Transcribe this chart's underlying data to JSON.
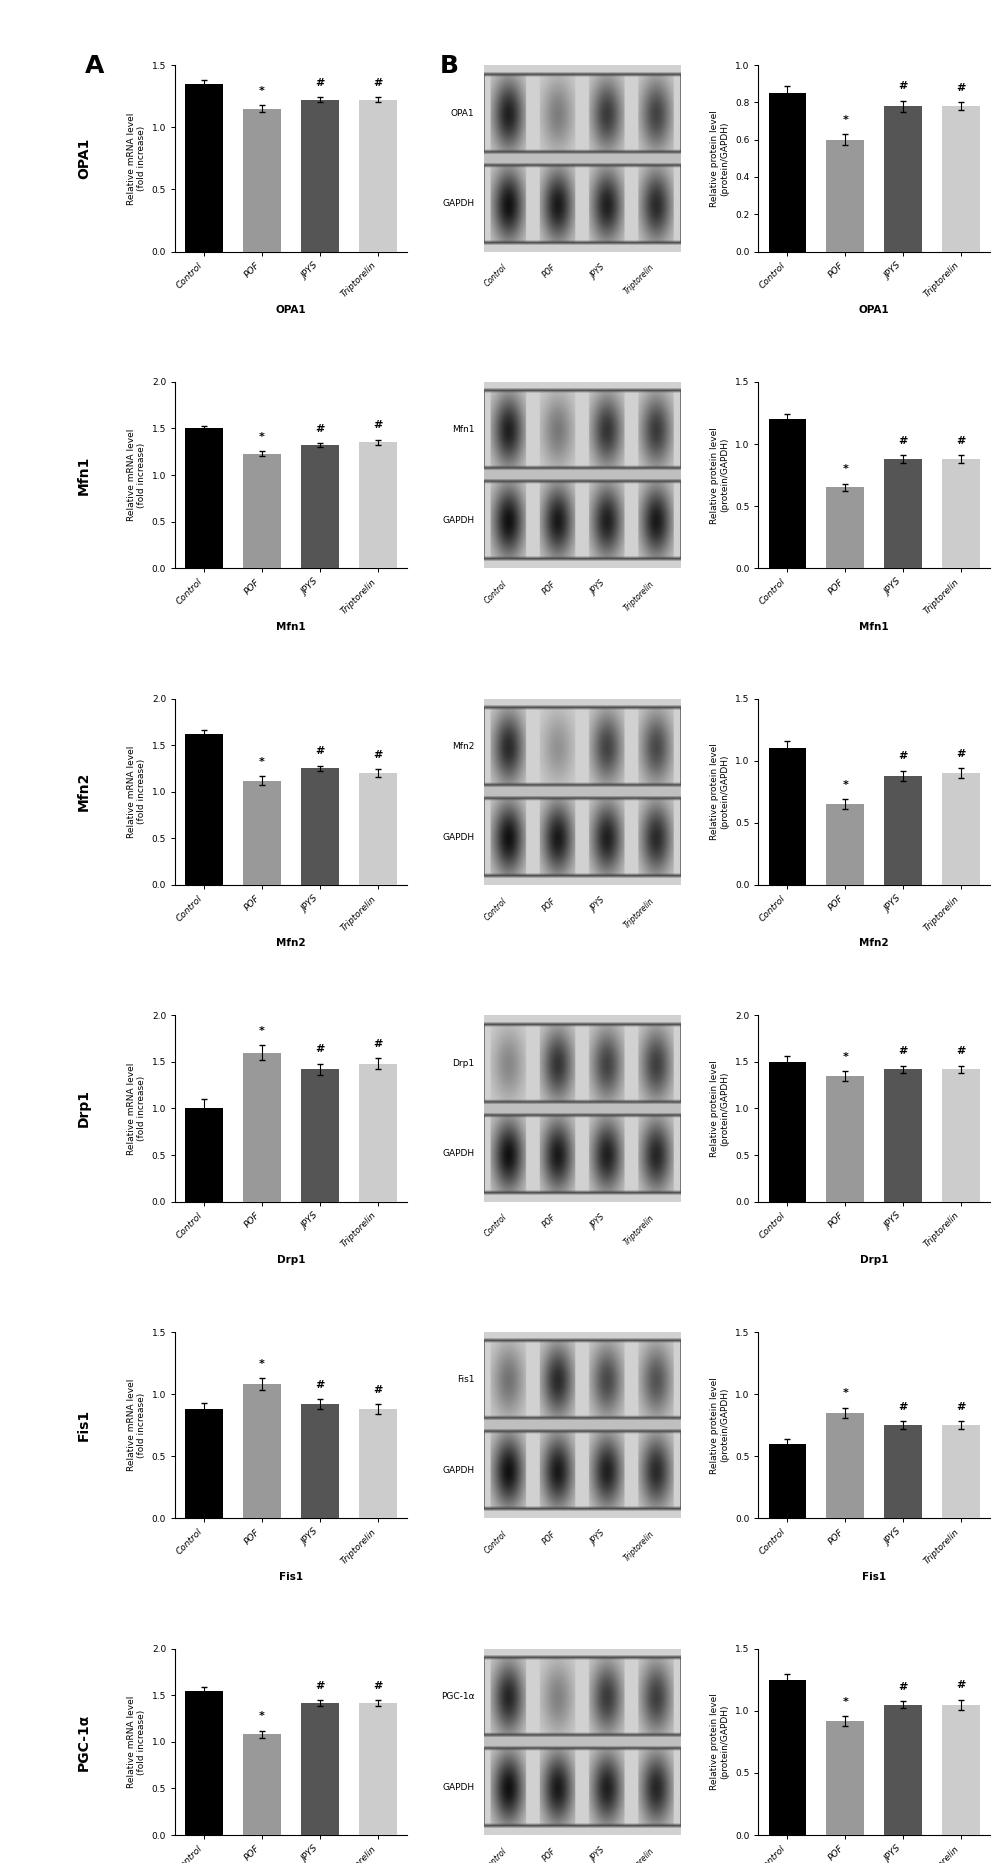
{
  "genes": [
    "OPA1",
    "Mfn1",
    "Mfn2",
    "Drp1",
    "Fis1",
    "PGC-1α"
  ],
  "categories": [
    "Control",
    "POF",
    "JPYS",
    "Triptorelin"
  ],
  "bar_colors": [
    "#000000",
    "#999999",
    "#555555",
    "#cccccc"
  ],
  "mrna_data": {
    "OPA1": {
      "means": [
        1.35,
        1.15,
        1.22,
        1.22
      ],
      "sds": [
        0.03,
        0.03,
        0.02,
        0.02
      ],
      "ylim": [
        0,
        1.5
      ],
      "yticks": [
        0.0,
        0.5,
        1.0,
        1.5
      ],
      "signs": [
        "",
        "*",
        "#",
        "#"
      ]
    },
    "Mfn1": {
      "means": [
        1.51,
        1.23,
        1.32,
        1.35
      ],
      "sds": [
        0.02,
        0.03,
        0.02,
        0.03
      ],
      "ylim": [
        0,
        2.0
      ],
      "yticks": [
        0.0,
        0.5,
        1.0,
        1.5,
        2.0
      ],
      "signs": [
        "",
        "*",
        "#",
        "#"
      ]
    },
    "Mfn2": {
      "means": [
        1.62,
        1.12,
        1.25,
        1.2
      ],
      "sds": [
        0.04,
        0.05,
        0.03,
        0.04
      ],
      "ylim": [
        0,
        2.0
      ],
      "yticks": [
        0.0,
        0.5,
        1.0,
        1.5,
        2.0
      ],
      "signs": [
        "",
        "*",
        "#",
        "#"
      ]
    },
    "Drp1": {
      "means": [
        1.0,
        1.6,
        1.42,
        1.48
      ],
      "sds": [
        0.1,
        0.08,
        0.06,
        0.06
      ],
      "ylim": [
        0,
        2.0
      ],
      "yticks": [
        0.0,
        0.5,
        1.0,
        1.5,
        2.0
      ],
      "signs": [
        "",
        "*",
        "#",
        "#"
      ]
    },
    "Fis1": {
      "means": [
        0.88,
        1.08,
        0.92,
        0.88
      ],
      "sds": [
        0.05,
        0.05,
        0.04,
        0.04
      ],
      "ylim": [
        0,
        1.5
      ],
      "yticks": [
        0.0,
        0.5,
        1.0,
        1.5
      ],
      "signs": [
        "",
        "*",
        "#",
        "#"
      ]
    },
    "PGC-1α": {
      "means": [
        1.55,
        1.08,
        1.42,
        1.42
      ],
      "sds": [
        0.04,
        0.04,
        0.03,
        0.03
      ],
      "ylim": [
        0,
        2.0
      ],
      "yticks": [
        0.0,
        0.5,
        1.0,
        1.5,
        2.0
      ],
      "signs": [
        "",
        "*",
        "#",
        "#"
      ]
    }
  },
  "protein_data": {
    "OPA1": {
      "means": [
        0.85,
        0.6,
        0.78,
        0.78
      ],
      "sds": [
        0.04,
        0.03,
        0.03,
        0.02
      ],
      "ylim": [
        0,
        1.0
      ],
      "yticks": [
        0.0,
        0.2,
        0.4,
        0.6,
        0.8,
        1.0
      ],
      "signs": [
        "",
        "*",
        "#",
        "#"
      ]
    },
    "Mfn1": {
      "means": [
        1.2,
        0.65,
        0.88,
        0.88
      ],
      "sds": [
        0.04,
        0.03,
        0.03,
        0.03
      ],
      "ylim": [
        0,
        1.5
      ],
      "yticks": [
        0.0,
        0.5,
        1.0,
        1.5
      ],
      "signs": [
        "",
        "*",
        "#",
        "#"
      ]
    },
    "Mfn2": {
      "means": [
        1.1,
        0.65,
        0.88,
        0.9
      ],
      "sds": [
        0.06,
        0.04,
        0.04,
        0.04
      ],
      "ylim": [
        0,
        1.5
      ],
      "yticks": [
        0.0,
        0.5,
        1.0,
        1.5
      ],
      "signs": [
        "",
        "*",
        "#",
        "#"
      ]
    },
    "Drp1": {
      "means": [
        1.5,
        1.35,
        1.42,
        1.42
      ],
      "sds": [
        0.06,
        0.05,
        0.04,
        0.04
      ],
      "ylim": [
        0,
        2.0
      ],
      "yticks": [
        0.0,
        0.5,
        1.0,
        1.5,
        2.0
      ],
      "signs": [
        "",
        "*",
        "#",
        "#"
      ]
    },
    "Fis1": {
      "means": [
        0.6,
        0.85,
        0.75,
        0.75
      ],
      "sds": [
        0.04,
        0.04,
        0.03,
        0.03
      ],
      "ylim": [
        0,
        1.5
      ],
      "yticks": [
        0.0,
        0.5,
        1.0,
        1.5
      ],
      "signs": [
        "",
        "*",
        "#",
        "#"
      ]
    },
    "PGC-1α": {
      "means": [
        1.25,
        0.92,
        1.05,
        1.05
      ],
      "sds": [
        0.05,
        0.04,
        0.03,
        0.04
      ],
      "ylim": [
        0,
        1.5
      ],
      "yticks": [
        0.0,
        0.5,
        1.0,
        1.5
      ],
      "signs": [
        "",
        "*",
        "#",
        "#"
      ]
    }
  },
  "wb_labels": {
    "OPA1": [
      "OPA1",
      "GAPDH"
    ],
    "Mfn1": [
      "Mfn1",
      "GAPDH"
    ],
    "Mfn2": [
      "Mfn2",
      "GAPDH"
    ],
    "Drp1": [
      "Drp1",
      "GAPDH"
    ],
    "Fis1": [
      "Fis1",
      "GAPDH"
    ],
    "PGC-1α": [
      "PGC-1α",
      "GAPDH"
    ]
  },
  "wb_top_intensities": {
    "OPA1": [
      0.85,
      0.4,
      0.72,
      0.68
    ],
    "Mfn1": [
      0.85,
      0.42,
      0.75,
      0.72
    ],
    "Mfn2": [
      0.8,
      0.3,
      0.68,
      0.65
    ],
    "Drp1": [
      0.35,
      0.75,
      0.68,
      0.7
    ],
    "Fis1": [
      0.45,
      0.8,
      0.65,
      0.6
    ],
    "PGC-1α": [
      0.82,
      0.38,
      0.72,
      0.7
    ]
  },
  "wb_gapdh_intensities": {
    "OPA1": [
      0.92,
      0.88,
      0.85,
      0.8
    ],
    "Mfn1": [
      0.92,
      0.88,
      0.85,
      0.88
    ],
    "Mfn2": [
      0.92,
      0.88,
      0.85,
      0.8
    ],
    "Drp1": [
      0.92,
      0.88,
      0.85,
      0.82
    ],
    "Fis1": [
      0.92,
      0.88,
      0.85,
      0.8
    ],
    "PGC-1α": [
      0.92,
      0.88,
      0.85,
      0.82
    ]
  },
  "figure_bg": "#ffffff",
  "panel_label_fontsize": 18,
  "gene_label_fontsize": 10,
  "axis_label_fontsize": 6.5,
  "tick_fontsize": 6.5,
  "xlabel_fontsize": 7.5,
  "sign_fontsize": 8,
  "wb_x_labels": [
    "Control",
    "POF",
    "JPYS",
    "Triptorelin"
  ]
}
